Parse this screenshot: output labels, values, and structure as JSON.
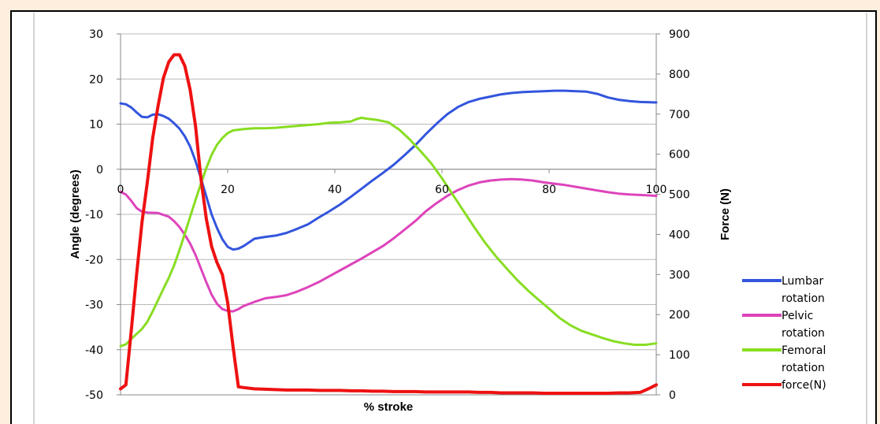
{
  "chart_data": {
    "type": "line",
    "xlabel": "% stroke",
    "ylabel_left": "Angle (degrees)",
    "ylabel_right": "Force (N)",
    "x_ticks": [
      0,
      20,
      40,
      60,
      80,
      100
    ],
    "y_left_ticks": [
      30,
      20,
      10,
      0,
      -10,
      -20,
      -30,
      -40,
      -50
    ],
    "y_right_ticks": [
      900,
      800,
      700,
      600,
      500,
      400,
      300,
      200,
      100,
      0
    ],
    "xlim": [
      0,
      100
    ],
    "ylim_left": [
      -50,
      30
    ],
    "ylim_right": [
      0,
      900
    ],
    "grid": "horizontal",
    "legend_position": "right",
    "series": [
      {
        "name": "Lumbar rotation",
        "axis": "left",
        "color": "#3355dd",
        "points": [
          [
            0,
            14.6
          ],
          [
            1,
            14.4
          ],
          [
            2,
            13.7
          ],
          [
            3,
            12.6
          ],
          [
            4,
            11.6
          ],
          [
            5,
            11.5
          ],
          [
            6,
            12.1
          ],
          [
            7,
            12.2
          ],
          [
            8,
            11.8
          ],
          [
            9,
            11.2
          ],
          [
            10,
            10.2
          ],
          [
            11,
            9.0
          ],
          [
            12,
            7.3
          ],
          [
            13,
            5.0
          ],
          [
            14,
            1.8
          ],
          [
            15,
            -2.0
          ],
          [
            16,
            -6.0
          ],
          [
            17,
            -10.0
          ],
          [
            18,
            -13.0
          ],
          [
            19,
            -15.5
          ],
          [
            20,
            -17.2
          ],
          [
            21,
            -17.8
          ],
          [
            22,
            -17.6
          ],
          [
            23,
            -17.0
          ],
          [
            24,
            -16.2
          ],
          [
            25,
            -15.4
          ],
          [
            27,
            -15.0
          ],
          [
            29,
            -14.7
          ],
          [
            31,
            -14.1
          ],
          [
            33,
            -13.2
          ],
          [
            35,
            -12.2
          ],
          [
            37,
            -10.7
          ],
          [
            39,
            -9.3
          ],
          [
            41,
            -7.8
          ],
          [
            43,
            -6.1
          ],
          [
            45,
            -4.3
          ],
          [
            47,
            -2.5
          ],
          [
            49,
            -0.8
          ],
          [
            51,
            1.0
          ],
          [
            53,
            3.1
          ],
          [
            55,
            5.3
          ],
          [
            57,
            7.8
          ],
          [
            59,
            10.1
          ],
          [
            61,
            12.2
          ],
          [
            63,
            13.8
          ],
          [
            65,
            14.9
          ],
          [
            67,
            15.6
          ],
          [
            69,
            16.1
          ],
          [
            71,
            16.6
          ],
          [
            73,
            16.9
          ],
          [
            75,
            17.1
          ],
          [
            77,
            17.2
          ],
          [
            79,
            17.3
          ],
          [
            81,
            17.4
          ],
          [
            83,
            17.4
          ],
          [
            85,
            17.3
          ],
          [
            87,
            17.2
          ],
          [
            89,
            16.7
          ],
          [
            91,
            15.9
          ],
          [
            93,
            15.4
          ],
          [
            95,
            15.1
          ],
          [
            97,
            14.9
          ],
          [
            100,
            14.8
          ]
        ]
      },
      {
        "name": "Pelvic rotation",
        "axis": "left",
        "color": "#dd44bb",
        "points": [
          [
            0,
            -5.0
          ],
          [
            1,
            -5.6
          ],
          [
            2,
            -7.0
          ],
          [
            3,
            -8.6
          ],
          [
            4,
            -9.4
          ],
          [
            5,
            -9.6
          ],
          [
            7,
            -9.7
          ],
          [
            9,
            -10.5
          ],
          [
            10,
            -11.5
          ],
          [
            11,
            -12.8
          ],
          [
            12,
            -14.5
          ],
          [
            13,
            -16.5
          ],
          [
            14,
            -19.0
          ],
          [
            15,
            -22.0
          ],
          [
            16,
            -25.0
          ],
          [
            17,
            -27.8
          ],
          [
            18,
            -29.8
          ],
          [
            19,
            -31.0
          ],
          [
            20,
            -31.4
          ],
          [
            21,
            -31.5
          ],
          [
            22,
            -31.0
          ],
          [
            23,
            -30.3
          ],
          [
            25,
            -29.4
          ],
          [
            27,
            -28.6
          ],
          [
            29,
            -28.3
          ],
          [
            31,
            -27.9
          ],
          [
            33,
            -27.1
          ],
          [
            35,
            -26.1
          ],
          [
            37,
            -25.0
          ],
          [
            39,
            -23.7
          ],
          [
            41,
            -22.4
          ],
          [
            43,
            -21.1
          ],
          [
            45,
            -19.8
          ],
          [
            47,
            -18.4
          ],
          [
            49,
            -17.0
          ],
          [
            51,
            -15.3
          ],
          [
            53,
            -13.4
          ],
          [
            55,
            -11.5
          ],
          [
            57,
            -9.3
          ],
          [
            59,
            -7.5
          ],
          [
            61,
            -5.9
          ],
          [
            63,
            -4.6
          ],
          [
            65,
            -3.6
          ],
          [
            67,
            -2.9
          ],
          [
            69,
            -2.5
          ],
          [
            71,
            -2.3
          ],
          [
            73,
            -2.2
          ],
          [
            75,
            -2.3
          ],
          [
            77,
            -2.5
          ],
          [
            79,
            -2.9
          ],
          [
            81,
            -3.2
          ],
          [
            83,
            -3.5
          ],
          [
            85,
            -3.9
          ],
          [
            87,
            -4.3
          ],
          [
            89,
            -4.7
          ],
          [
            91,
            -5.1
          ],
          [
            93,
            -5.4
          ],
          [
            95,
            -5.6
          ],
          [
            97,
            -5.7
          ],
          [
            100,
            -5.9
          ]
        ]
      },
      {
        "name": "Femoral rotation",
        "axis": "left",
        "color": "#88dd22",
        "points": [
          [
            0,
            -39.2
          ],
          [
            1,
            -38.8
          ],
          [
            2,
            -37.6
          ],
          [
            3,
            -36.5
          ],
          [
            4,
            -35.4
          ],
          [
            5,
            -33.8
          ],
          [
            6,
            -31.5
          ],
          [
            7,
            -29.0
          ],
          [
            8,
            -26.5
          ],
          [
            9,
            -24.1
          ],
          [
            10,
            -21.3
          ],
          [
            11,
            -17.9
          ],
          [
            12,
            -14.3
          ],
          [
            13,
            -10.5
          ],
          [
            14,
            -6.8
          ],
          [
            15,
            -3.2
          ],
          [
            16,
            0.2
          ],
          [
            17,
            3.2
          ],
          [
            18,
            5.4
          ],
          [
            19,
            6.9
          ],
          [
            20,
            8.0
          ],
          [
            21,
            8.6
          ],
          [
            23,
            8.9
          ],
          [
            25,
            9.1
          ],
          [
            27,
            9.1
          ],
          [
            29,
            9.2
          ],
          [
            31,
            9.4
          ],
          [
            33,
            9.6
          ],
          [
            35,
            9.8
          ],
          [
            37,
            10.0
          ],
          [
            39,
            10.3
          ],
          [
            41,
            10.4
          ],
          [
            43,
            10.6
          ],
          [
            44,
            11.1
          ],
          [
            45,
            11.4
          ],
          [
            46,
            11.2
          ],
          [
            48,
            10.9
          ],
          [
            50,
            10.4
          ],
          [
            52,
            8.8
          ],
          [
            54,
            6.6
          ],
          [
            56,
            4.0
          ],
          [
            58,
            1.3
          ],
          [
            60,
            -2.0
          ],
          [
            62,
            -5.6
          ],
          [
            64,
            -9.2
          ],
          [
            66,
            -12.8
          ],
          [
            68,
            -16.2
          ],
          [
            70,
            -19.2
          ],
          [
            72,
            -21.9
          ],
          [
            74,
            -24.5
          ],
          [
            76,
            -26.8
          ],
          [
            78,
            -28.9
          ],
          [
            80,
            -30.9
          ],
          [
            82,
            -33.0
          ],
          [
            84,
            -34.6
          ],
          [
            86,
            -35.8
          ],
          [
            88,
            -36.6
          ],
          [
            90,
            -37.4
          ],
          [
            92,
            -38.1
          ],
          [
            94,
            -38.6
          ],
          [
            96,
            -38.9
          ],
          [
            98,
            -38.9
          ],
          [
            100,
            -38.6
          ]
        ]
      },
      {
        "name": "force(N)",
        "axis": "right",
        "color": "#ee1111",
        "points": [
          [
            0,
            15
          ],
          [
            1,
            25
          ],
          [
            2,
            160
          ],
          [
            3,
            300
          ],
          [
            4,
            430
          ],
          [
            5,
            530
          ],
          [
            6,
            640
          ],
          [
            7,
            720
          ],
          [
            8,
            790
          ],
          [
            9,
            830
          ],
          [
            10,
            848
          ],
          [
            11,
            848
          ],
          [
            12,
            820
          ],
          [
            13,
            760
          ],
          [
            14,
            670
          ],
          [
            15,
            540
          ],
          [
            16,
            440
          ],
          [
            17,
            370
          ],
          [
            18,
            330
          ],
          [
            19,
            300
          ],
          [
            20,
            230
          ],
          [
            21,
            120
          ],
          [
            22,
            20
          ],
          [
            23,
            18
          ],
          [
            25,
            15
          ],
          [
            27,
            14
          ],
          [
            29,
            13
          ],
          [
            31,
            12
          ],
          [
            33,
            12
          ],
          [
            35,
            12
          ],
          [
            37,
            11
          ],
          [
            39,
            11
          ],
          [
            41,
            11
          ],
          [
            43,
            10
          ],
          [
            45,
            10
          ],
          [
            47,
            9
          ],
          [
            49,
            9
          ],
          [
            51,
            8
          ],
          [
            53,
            8
          ],
          [
            55,
            8
          ],
          [
            57,
            7
          ],
          [
            59,
            7
          ],
          [
            61,
            7
          ],
          [
            63,
            7
          ],
          [
            65,
            7
          ],
          [
            67,
            6
          ],
          [
            69,
            6
          ],
          [
            71,
            5
          ],
          [
            73,
            5
          ],
          [
            75,
            5
          ],
          [
            77,
            5
          ],
          [
            79,
            4
          ],
          [
            81,
            4
          ],
          [
            83,
            4
          ],
          [
            85,
            4
          ],
          [
            87,
            4
          ],
          [
            89,
            4
          ],
          [
            91,
            4
          ],
          [
            93,
            5
          ],
          [
            95,
            5
          ],
          [
            97,
            6
          ],
          [
            98,
            12
          ],
          [
            99,
            18
          ],
          [
            100,
            25
          ]
        ]
      }
    ]
  },
  "legend": {
    "items": [
      {
        "lines": [
          "Lumbar",
          "rotation"
        ],
        "color": "#3355dd"
      },
      {
        "lines": [
          "Pelvic",
          "rotation"
        ],
        "color": "#dd44bb"
      },
      {
        "lines": [
          "Femoral",
          "rotation"
        ],
        "color": "#88dd22"
      },
      {
        "lines": [
          "force(N)"
        ],
        "color": "#ee1111"
      }
    ]
  }
}
